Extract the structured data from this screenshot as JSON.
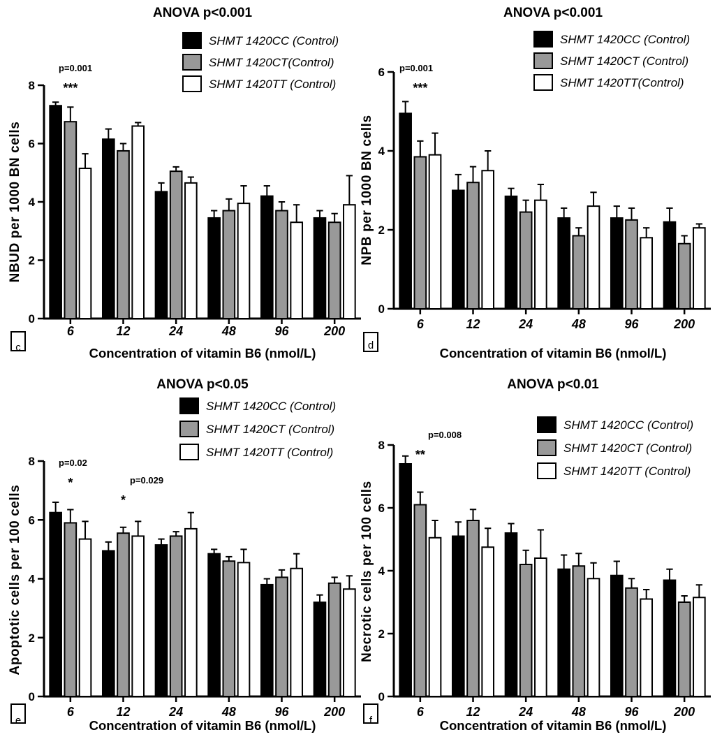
{
  "chart_data": [
    {
      "panel_label": "c",
      "type": "bar",
      "title": "ANOVA    p<0.001",
      "xlabel": "Concentration of vitamin B6 (nmol/L)",
      "ylabel": "NBUD per 1000 BN cells",
      "ylim": [
        0,
        8
      ],
      "yticks": [
        "0",
        "2",
        "4",
        "6",
        "8"
      ],
      "categories": [
        "6",
        "12",
        "24",
        "48",
        "96",
        "200"
      ],
      "legend": [
        "SHMT 1420CC (Control)",
        "SHMT 1420CT(Control)",
        "SHMT 1420TT (Control)"
      ],
      "series": [
        {
          "name": "SHMT 1420CC (Control)",
          "color": "#000000",
          "values": [
            7.3,
            6.15,
            4.35,
            3.45,
            4.2,
            3.45
          ],
          "errors": [
            0.12,
            0.35,
            0.3,
            0.25,
            0.35,
            0.25
          ]
        },
        {
          "name": "SHMT 1420CT(Control)",
          "color": "#999999",
          "values": [
            6.75,
            5.75,
            5.05,
            3.7,
            3.7,
            3.3
          ],
          "errors": [
            0.5,
            0.25,
            0.15,
            0.4,
            0.3,
            0.3
          ]
        },
        {
          "name": "SHMT 1420TT (Control)",
          "color": "#ffffff",
          "values": [
            5.15,
            6.6,
            4.65,
            3.95,
            3.3,
            3.9
          ],
          "errors": [
            0.5,
            0.12,
            0.2,
            0.6,
            0.6,
            1.0
          ]
        }
      ],
      "annotations": [
        {
          "category": "6",
          "p": "p=0.001",
          "stars": "***"
        }
      ]
    },
    {
      "panel_label": "d",
      "type": "bar",
      "title": "ANOVA p<0.001",
      "xlabel": "Concentration of vitamin B6 (nmol/L)",
      "ylabel": "NPB per 1000 BN cells",
      "ylim": [
        0,
        6
      ],
      "yticks": [
        "0",
        "2",
        "4",
        "6"
      ],
      "categories": [
        "6",
        "12",
        "24",
        "48",
        "96",
        "200"
      ],
      "legend": [
        "SHMT 1420CC (Control)",
        "SHMT 1420CT (Control)",
        "SHMT 1420TT(Control)"
      ],
      "series": [
        {
          "name": "SHMT 1420CC (Control)",
          "color": "#000000",
          "values": [
            4.95,
            3.0,
            2.85,
            2.3,
            2.3,
            2.2
          ],
          "errors": [
            0.3,
            0.4,
            0.2,
            0.25,
            0.3,
            0.35
          ]
        },
        {
          "name": "SHMT 1420CT (Control)",
          "color": "#999999",
          "values": [
            3.85,
            3.2,
            2.45,
            1.85,
            2.25,
            1.65
          ],
          "errors": [
            0.4,
            0.4,
            0.3,
            0.2,
            0.3,
            0.2
          ]
        },
        {
          "name": "SHMT 1420TT(Control)",
          "color": "#ffffff",
          "values": [
            3.9,
            3.5,
            2.75,
            2.6,
            1.8,
            2.05
          ],
          "errors": [
            0.55,
            0.5,
            0.4,
            0.35,
            0.25,
            0.1
          ]
        }
      ],
      "annotations": [
        {
          "category": "6",
          "p": "p=0.001",
          "stars": "***"
        }
      ]
    },
    {
      "panel_label": "e",
      "type": "bar",
      "title": "ANOVA     p<0.05",
      "xlabel": "Concentration of  vitamin B6 (nmol/L)",
      "ylabel": "Apoptotic cells per 100 cells",
      "ylim": [
        0,
        8
      ],
      "yticks": [
        "0",
        "2",
        "4",
        "6",
        "8"
      ],
      "categories": [
        "6",
        "12",
        "24",
        "48",
        "96",
        "200"
      ],
      "legend": [
        "SHMT 1420CC (Control)",
        "SHMT 1420CT (Control)",
        "SHMT 1420TT (Control)"
      ],
      "series": [
        {
          "name": "SHMT 1420CC (Control)",
          "color": "#000000",
          "values": [
            6.25,
            4.95,
            5.15,
            4.85,
            3.8,
            3.2
          ],
          "errors": [
            0.35,
            0.3,
            0.2,
            0.15,
            0.2,
            0.25
          ]
        },
        {
          "name": "SHMT 1420CT (Control)",
          "color": "#999999",
          "values": [
            5.9,
            5.55,
            5.45,
            4.6,
            4.05,
            3.85
          ],
          "errors": [
            0.45,
            0.2,
            0.15,
            0.15,
            0.25,
            0.2
          ]
        },
        {
          "name": "SHMT 1420TT (Control)",
          "color": "#ffffff",
          "values": [
            5.35,
            5.45,
            5.7,
            4.55,
            4.35,
            3.65
          ],
          "errors": [
            0.6,
            0.5,
            0.55,
            0.45,
            0.5,
            0.45
          ]
        }
      ],
      "annotations": [
        {
          "category": "6",
          "p": "p=0.02",
          "stars": "*"
        },
        {
          "category": "12",
          "p": "p=0.029",
          "stars": "*"
        }
      ]
    },
    {
      "panel_label": "f",
      "type": "bar",
      "title": "ANOVA  p<0.01",
      "xlabel": "Concentration of vitamin B6 (nmol/L)",
      "ylabel": "Necrotic cells per 100 cells",
      "ylim": [
        0,
        8
      ],
      "yticks": [
        "0",
        "2",
        "4",
        "6",
        "8"
      ],
      "categories": [
        "6",
        "12",
        "24",
        "48",
        "96",
        "200"
      ],
      "legend": [
        "SHMT 1420CC (Control)",
        "SHMT 1420CT (Control)",
        "SHMT 1420TT (Control)"
      ],
      "series": [
        {
          "name": "SHMT 1420CC (Control)",
          "color": "#000000",
          "values": [
            7.4,
            5.1,
            5.2,
            4.05,
            3.85,
            3.7
          ],
          "errors": [
            0.25,
            0.45,
            0.3,
            0.45,
            0.45,
            0.35
          ]
        },
        {
          "name": "SHMT 1420CT (Control)",
          "color": "#999999",
          "values": [
            6.1,
            5.6,
            4.2,
            4.15,
            3.45,
            3.0
          ],
          "errors": [
            0.4,
            0.35,
            0.45,
            0.4,
            0.3,
            0.2
          ]
        },
        {
          "name": "SHMT 1420TT (Control)",
          "color": "#ffffff",
          "values": [
            5.05,
            4.75,
            4.4,
            3.75,
            3.1,
            3.15
          ],
          "errors": [
            0.55,
            0.6,
            0.9,
            0.5,
            0.3,
            0.4
          ]
        }
      ],
      "annotations": [
        {
          "category": "6",
          "p": "p=0.008",
          "stars": "**"
        }
      ]
    }
  ]
}
